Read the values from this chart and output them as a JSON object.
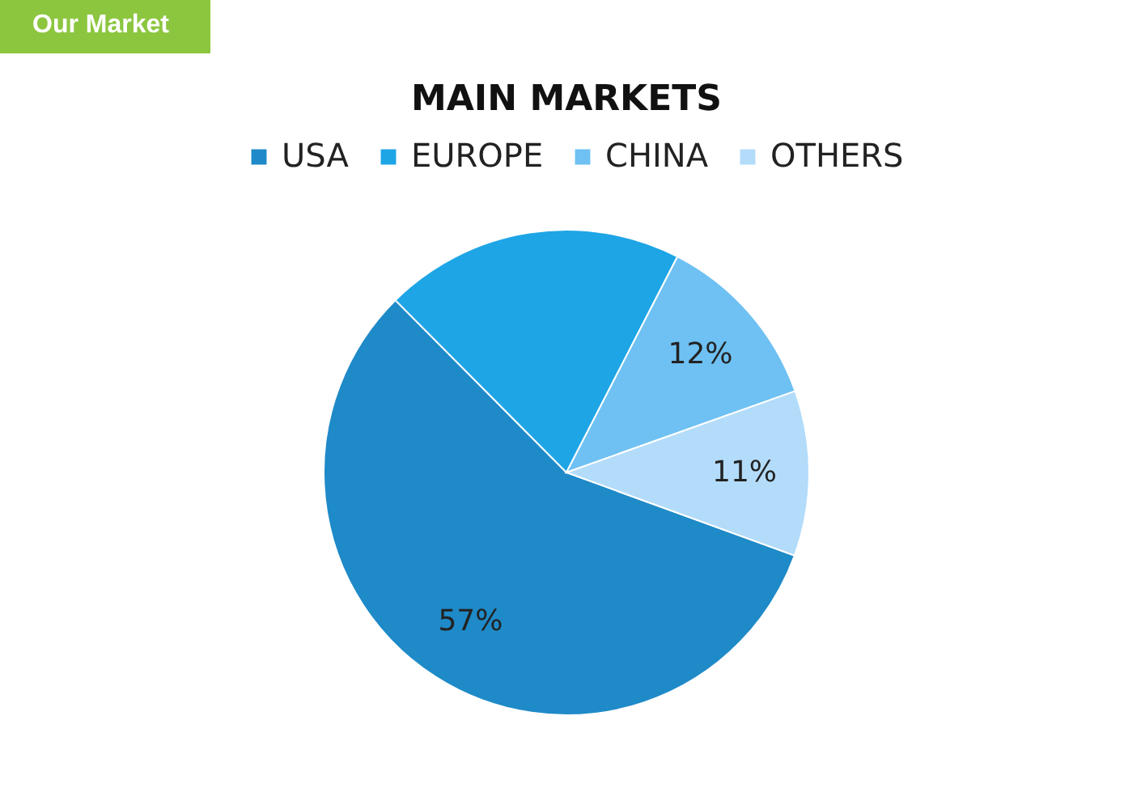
{
  "chart_data": {
    "type": "pie",
    "title": "MAIN MARKETS",
    "annotations": [
      "Our Market"
    ],
    "categories": [
      "USA",
      "EUROPE",
      "CHINA",
      "OTHERS"
    ],
    "values": [
      57,
      20,
      12,
      11
    ],
    "value_labels": [
      "57%",
      null,
      "12%",
      "11%"
    ],
    "colors": [
      "#1f8ac8",
      "#1ea5e6",
      "#6ec1f2",
      "#b3dcfa"
    ],
    "legend": "top"
  }
}
